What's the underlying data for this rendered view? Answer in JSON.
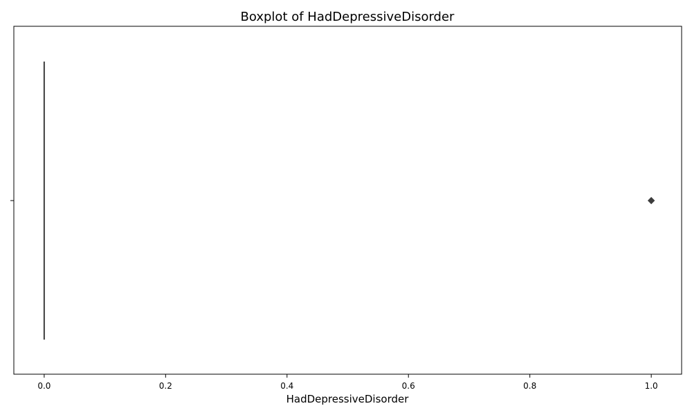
{
  "chart_data": {
    "type": "box",
    "title": "Boxplot of HadDepressiveDisorder",
    "xlabel": "HadDepressiveDisorder",
    "ylabel": "",
    "xlim": [
      -0.05,
      1.05
    ],
    "x_ticks": [
      "0.0",
      "0.2",
      "0.4",
      "0.6",
      "0.8",
      "1.0"
    ],
    "orientation": "horizontal",
    "grid": false,
    "box": {
      "q1": 0,
      "median": 0,
      "q3": 0,
      "whisker_low": 0,
      "whisker_high": 0
    },
    "outliers": [
      1.0
    ],
    "colors": {
      "box": "#3d3d3d",
      "outlier": "#3d3d3d"
    }
  }
}
